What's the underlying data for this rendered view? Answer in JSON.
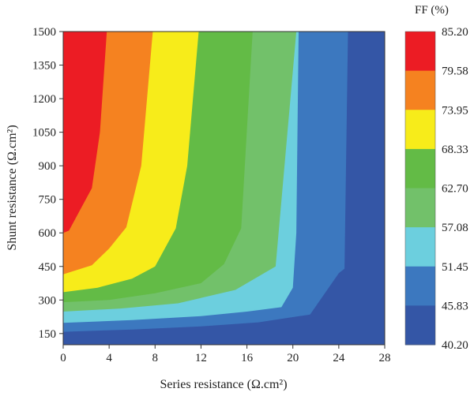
{
  "chart_data": {
    "type": "contour",
    "title": "",
    "xlabel": "Series resistance (Ω.cm²)",
    "ylabel": "Shunt resistance (Ω.cm²)",
    "xlim": [
      0,
      28
    ],
    "ylim": [
      100,
      1500
    ],
    "x_ticks": [
      "0",
      "4",
      "8",
      "12",
      "16",
      "20",
      "24",
      "28"
    ],
    "y_ticks": [
      "150",
      "300",
      "450",
      "600",
      "750",
      "900",
      "1050",
      "1200",
      "1350",
      "1500"
    ],
    "colorbar": {
      "title": "FF (%)",
      "levels": [
        "85.20",
        "79.58",
        "73.95",
        "68.33",
        "62.70",
        "57.08",
        "51.45",
        "45.83",
        "40.20"
      ],
      "colors": [
        "#ec1c24",
        "#f58220",
        "#f7ec1a",
        "#63bb46",
        "#72c16a",
        "#6ccfde",
        "#3c78bf",
        "#3456a6"
      ]
    },
    "contours": [
      {
        "ff_min": 40.2,
        "ff_max": 45.83,
        "color": "#3456a6",
        "boundary": [
          [
            0,
            112
          ],
          [
            6,
            118
          ],
          [
            12,
            125
          ],
          [
            18,
            138
          ],
          [
            24,
            158
          ],
          [
            28,
            178
          ]
        ]
      },
      {
        "ff_min": 45.83,
        "ff_max": 51.45,
        "color": "#3c78bf",
        "boundary": [
          [
            0,
            158
          ],
          [
            6,
            168
          ],
          [
            12,
            182
          ],
          [
            17,
            200
          ],
          [
            21.5,
            235
          ],
          [
            24,
            420
          ],
          [
            24.5,
            440
          ],
          [
            24.8,
            1500
          ]
        ]
      },
      {
        "ff_min": 51.45,
        "ff_max": 57.08,
        "color": "#6ccfde",
        "boundary": [
          [
            0,
            198
          ],
          [
            6,
            210
          ],
          [
            12,
            228
          ],
          [
            16,
            248
          ],
          [
            19,
            268
          ],
          [
            20,
            355
          ],
          [
            20.3,
            600
          ],
          [
            20.5,
            1500
          ]
        ]
      },
      {
        "ff_min": 57.08,
        "ff_max": 62.7,
        "color": "#72c16a",
        "boundary": [
          [
            0,
            248
          ],
          [
            5,
            262
          ],
          [
            10,
            285
          ],
          [
            15,
            345
          ],
          [
            18.5,
            450
          ],
          [
            20.3,
            1500
          ]
        ]
      },
      {
        "ff_min": 62.7,
        "ff_max": 68.33,
        "color": "#63bb46",
        "boundary": [
          [
            0,
            290
          ],
          [
            4,
            300
          ],
          [
            8,
            330
          ],
          [
            12,
            375
          ],
          [
            14,
            460
          ],
          [
            15.5,
            620
          ],
          [
            16.5,
            1500
          ]
        ]
      },
      {
        "ff_min": 68.33,
        "ff_max": 73.95,
        "color": "#f7ec1a",
        "boundary": [
          [
            0,
            335
          ],
          [
            3,
            355
          ],
          [
            6,
            395
          ],
          [
            8,
            450
          ],
          [
            9.8,
            620
          ],
          [
            10.8,
            900
          ],
          [
            11.8,
            1500
          ]
        ]
      },
      {
        "ff_min": 73.95,
        "ff_max": 79.58,
        "color": "#f58220",
        "boundary": [
          [
            0,
            415
          ],
          [
            2.5,
            455
          ],
          [
            4,
            530
          ],
          [
            5.5,
            625
          ],
          [
            6.8,
            900
          ],
          [
            7.8,
            1500
          ]
        ]
      },
      {
        "ff_min": 79.58,
        "ff_max": 85.2,
        "color": "#ec1c24",
        "boundary": [
          [
            0,
            600
          ],
          [
            0.5,
            610
          ],
          [
            1.5,
            705
          ],
          [
            2.5,
            800
          ],
          [
            3.2,
            1050
          ],
          [
            3.8,
            1500
          ]
        ]
      }
    ]
  }
}
